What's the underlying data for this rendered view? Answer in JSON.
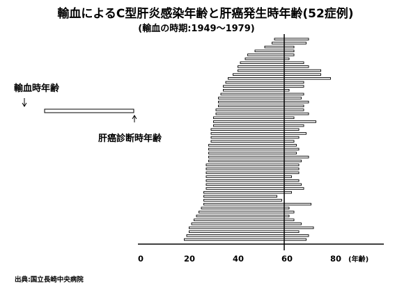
{
  "chart_data": {
    "type": "bar",
    "title": "輸血によるC型肝炎感染年齢と肝癌発生時年齢(52症例)",
    "subtitle": "(輸血の時期:1949〜1979)",
    "source": "出典:国立長崎中央病院",
    "x_unit": "(年齢)",
    "xlim": [
      0,
      100
    ],
    "xticks": [
      0,
      20,
      40,
      60,
      80
    ],
    "grid": false,
    "legend": [
      {
        "label": "輸血時年齢"
      },
      {
        "label": "肝癌診断時年齢"
      }
    ],
    "ranges": [
      [
        56,
        70
      ],
      [
        55,
        69
      ],
      [
        52,
        64
      ],
      [
        48,
        64
      ],
      [
        45,
        64
      ],
      [
        44,
        62
      ],
      [
        42,
        68
      ],
      [
        41,
        70
      ],
      [
        41,
        75
      ],
      [
        39,
        75
      ],
      [
        37,
        79
      ],
      [
        36,
        68
      ],
      [
        35,
        68
      ],
      [
        35,
        62
      ],
      [
        34,
        68
      ],
      [
        33,
        67
      ],
      [
        33,
        70
      ],
      [
        33,
        68
      ],
      [
        32,
        68
      ],
      [
        32,
        70
      ],
      [
        31,
        64
      ],
      [
        31,
        73
      ],
      [
        31,
        68
      ],
      [
        30,
        66
      ],
      [
        30,
        69
      ],
      [
        30,
        66
      ],
      [
        30,
        64
      ],
      [
        29,
        65
      ],
      [
        29,
        66
      ],
      [
        29,
        65
      ],
      [
        29,
        70
      ],
      [
        29,
        67
      ],
      [
        28,
        66
      ],
      [
        28,
        66
      ],
      [
        28,
        66
      ],
      [
        28,
        63
      ],
      [
        28,
        66
      ],
      [
        28,
        67
      ],
      [
        28,
        68
      ],
      [
        27,
        63
      ],
      [
        27,
        57
      ],
      [
        27,
        59
      ],
      [
        27,
        71
      ],
      [
        26,
        62
      ],
      [
        25,
        64
      ],
      [
        24,
        62
      ],
      [
        23,
        64
      ],
      [
        22,
        67
      ],
      [
        21,
        72
      ],
      [
        21,
        66
      ],
      [
        20,
        70
      ],
      [
        19,
        69
      ]
    ],
    "reference_line_x": 60
  }
}
